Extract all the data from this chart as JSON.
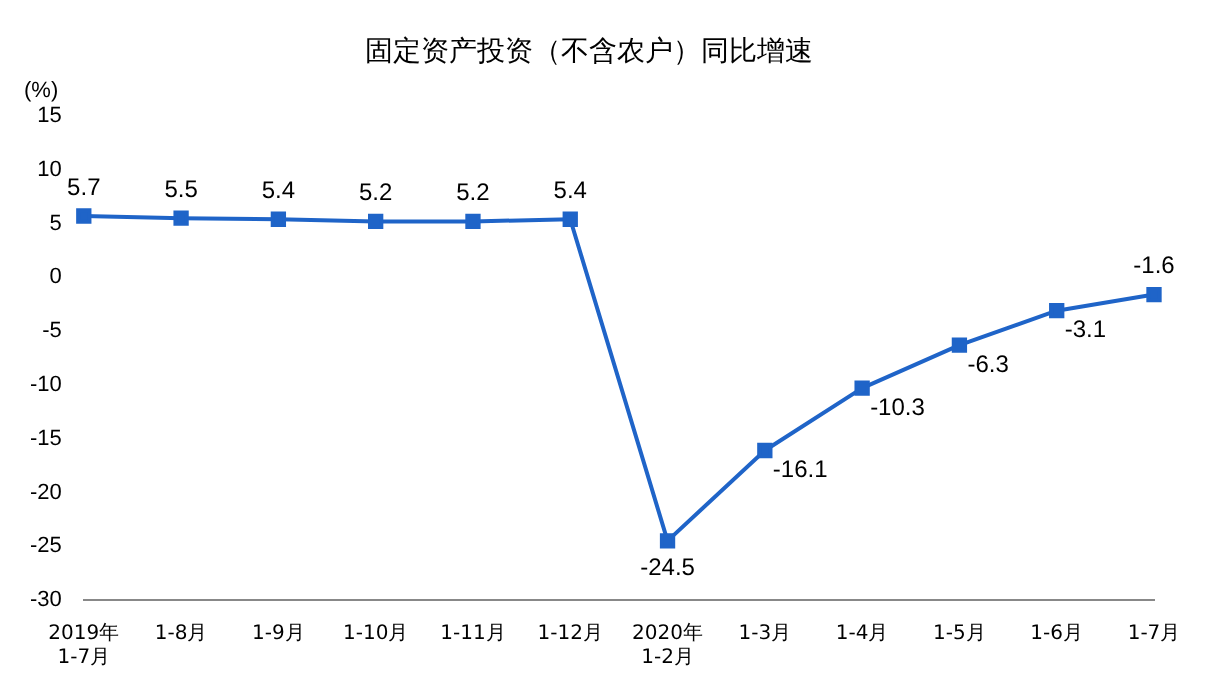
{
  "chart_data": {
    "type": "line",
    "title": "固定资产投资（不含农户）同比增速",
    "ylabel": "(%)",
    "categories": [
      "2019年\n1-7月",
      "1-8月",
      "1-9月",
      "1-10月",
      "1-11月",
      "1-12月",
      "2020年\n1-2月",
      "1-3月",
      "1-4月",
      "1-5月",
      "1-6月",
      "1-7月"
    ],
    "series": [
      {
        "color": "#1f64c8",
        "values": [
          5.7,
          5.5,
          5.4,
          5.2,
          5.2,
          5.4,
          -24.5,
          -16.1,
          -10.3,
          -6.3,
          -3.1,
          -1.6
        ]
      }
    ],
    "ylim": [
      -30,
      15
    ],
    "yticks": [
      -30,
      -25,
      -20,
      -15,
      -10,
      -5,
      0,
      5,
      10,
      15
    ],
    "grid": false,
    "legend": false,
    "marker": "square",
    "line_style": "solid",
    "data_labels": true
  }
}
